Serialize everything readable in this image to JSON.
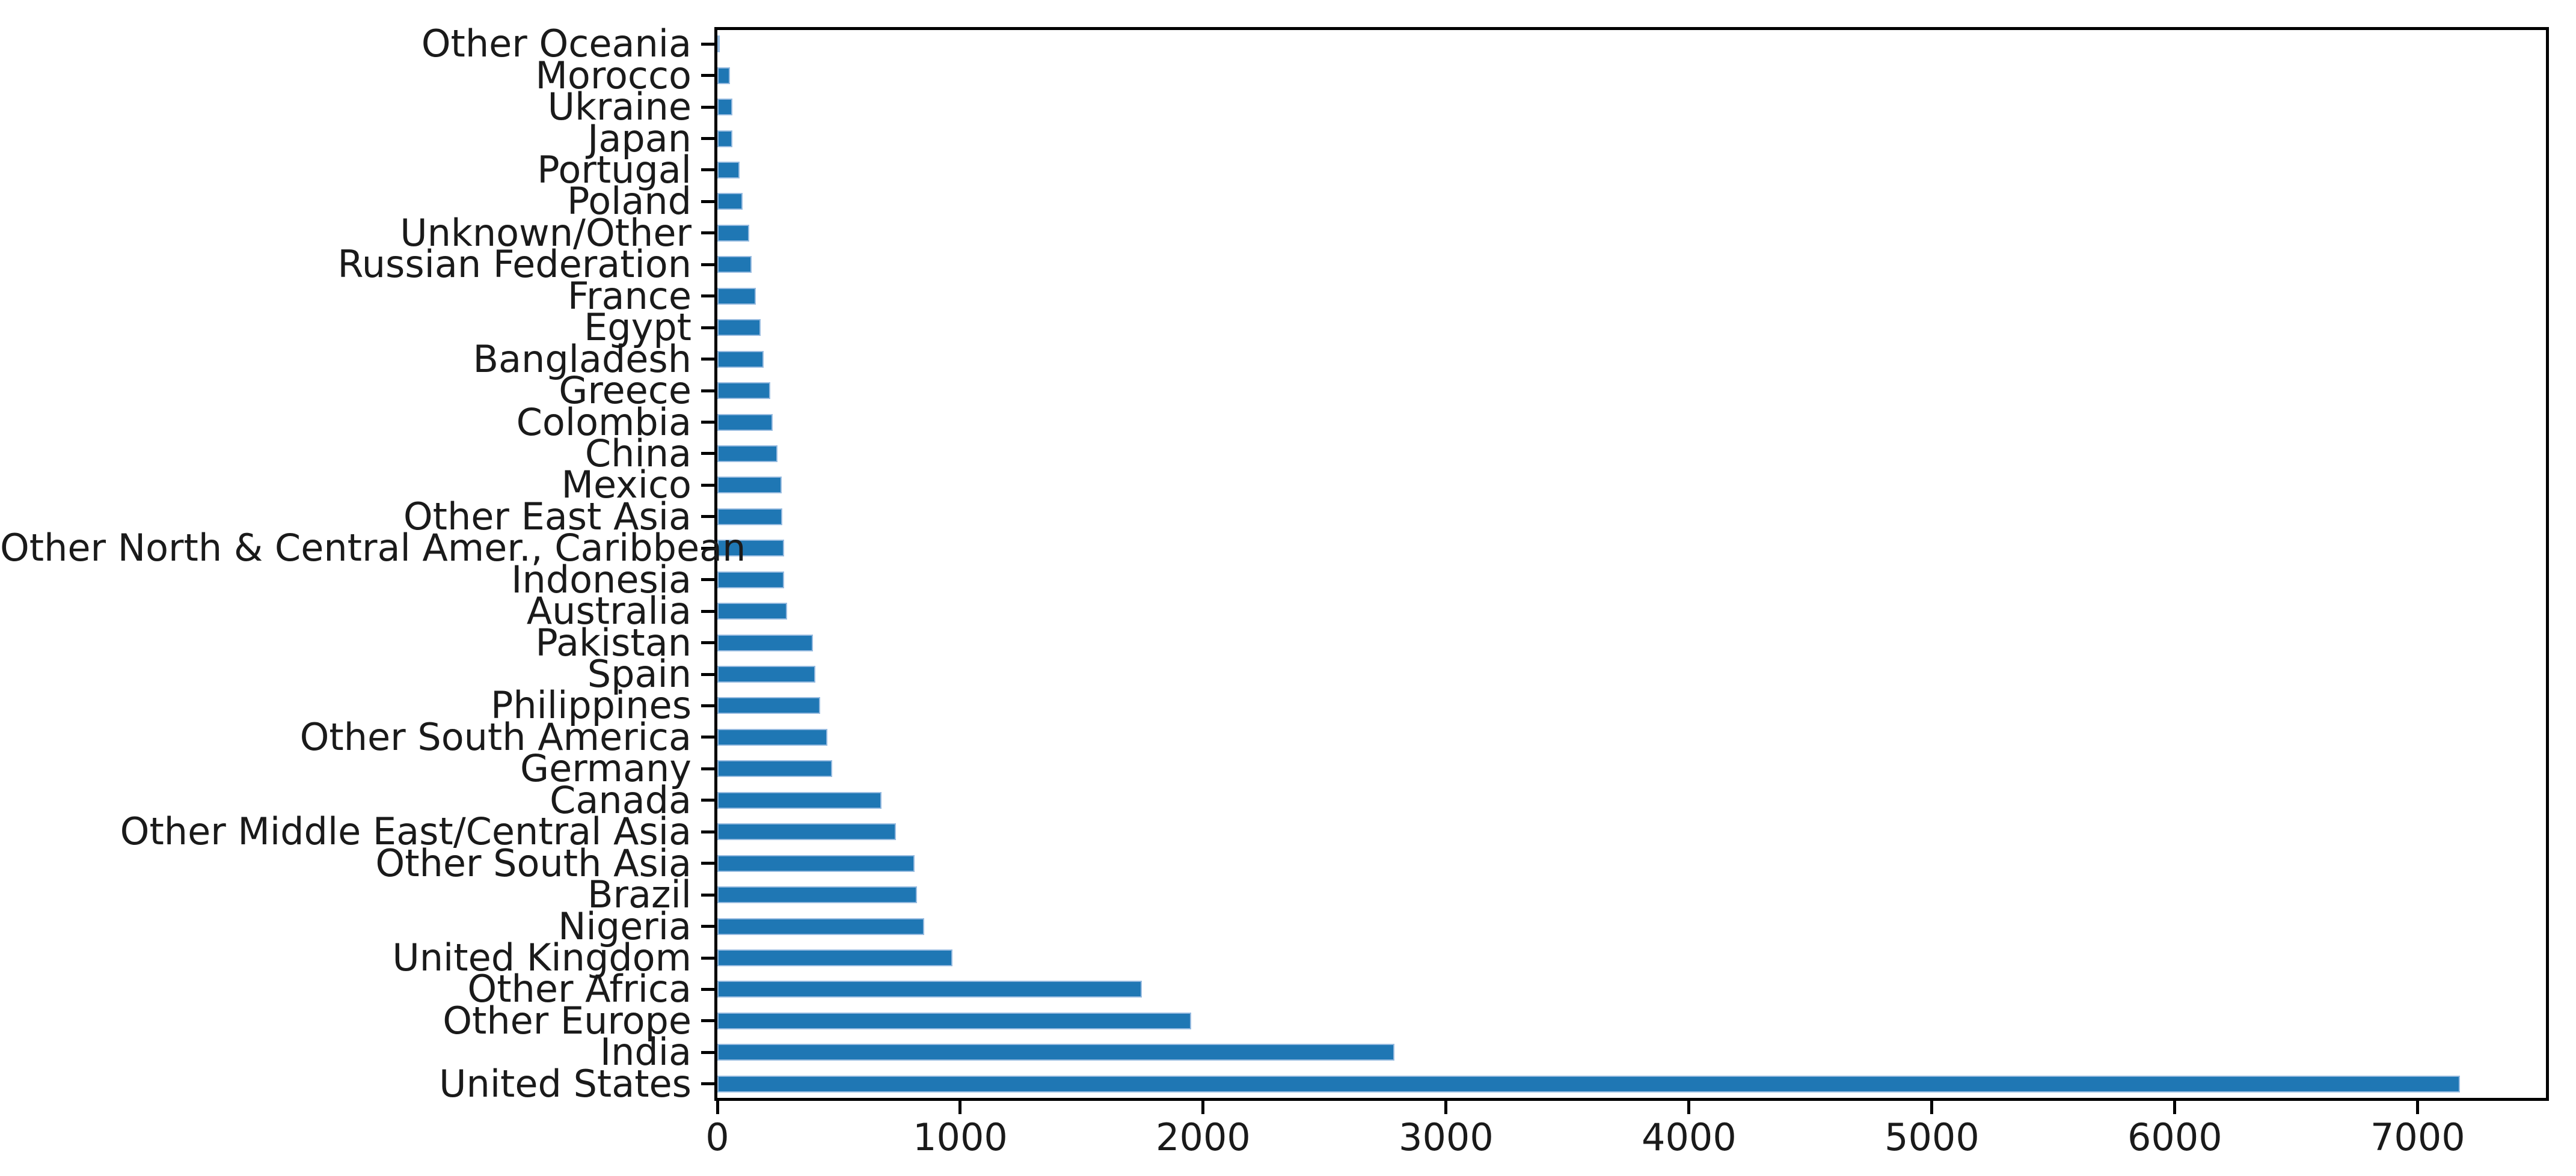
{
  "figure": {
    "background": "#ffffff",
    "title": "",
    "legend": "none"
  },
  "chart_data": {
    "type": "bar",
    "orientation": "horizontal",
    "title": "",
    "xlabel": "",
    "ylabel": "",
    "grid": "off",
    "legend_position": "none",
    "categories": [
      "Other Oceania",
      "Morocco",
      "Ukraine",
      "Japan",
      "Portugal",
      "Poland",
      "Unknown/Other",
      "Russian Federation",
      "France",
      "Egypt",
      "Bangladesh",
      "Greece",
      "Colombia",
      "China",
      "Mexico",
      "Other East Asia",
      "Other North & Central Amer., Caribbean",
      "Indonesia",
      "Australia",
      "Pakistan",
      "Spain",
      "Philippines",
      "Other South America",
      "Germany",
      "Canada",
      "Other Middle East/Central Asia",
      "Other South Asia",
      "Brazil",
      "Nigeria",
      "United Kingdom",
      "Other Africa",
      "Other Europe",
      "India",
      "United States"
    ],
    "categories_order": "top-to-bottom",
    "values": [
      4,
      52,
      62,
      62,
      92,
      103,
      131,
      140,
      159,
      178,
      190,
      218,
      228,
      247,
      265,
      267,
      275,
      276,
      287,
      394,
      403,
      423,
      453,
      473,
      676,
      734,
      812,
      822,
      851,
      967,
      1747,
      1950,
      2787,
      7173
    ],
    "x_ticks": [
      0,
      1000,
      2000,
      3000,
      4000,
      5000,
      6000,
      7000
    ],
    "xlim": [
      0,
      7535
    ],
    "bar_color": "#1f77b4",
    "bar_edge_color": "#aec7e8",
    "axis_color": "#000000",
    "text_color": "#1a1a1a"
  }
}
